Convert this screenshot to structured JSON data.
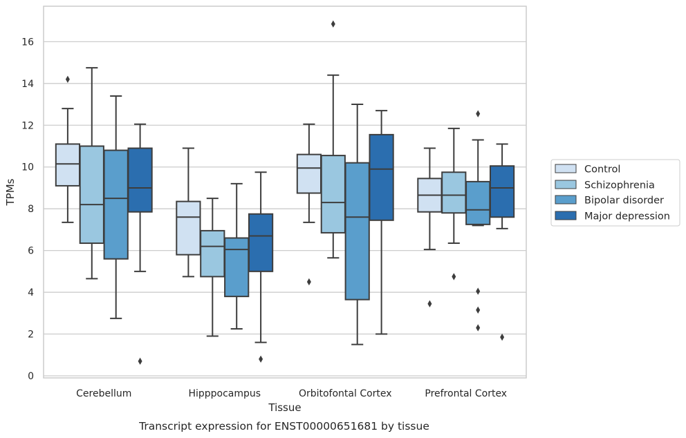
{
  "chart_data": {
    "type": "boxplot",
    "xlabel": "Tissue",
    "ylabel": "TPMs",
    "caption": "Transcript expression for ENST00000651681 by tissue",
    "ylim": [
      -0.1,
      17.7
    ],
    "yticks": [
      0,
      2,
      4,
      6,
      8,
      10,
      12,
      14,
      16
    ],
    "grid": "horizontal",
    "legend_position": "right",
    "categories": [
      "Cerebellum",
      "Hipppocampus",
      "Orbitofontal Cortex",
      "Prefrontal Cortex"
    ],
    "series": [
      {
        "name": "Control",
        "color": "#d0e1f2",
        "boxes": [
          {
            "whislo": 7.35,
            "q1": 9.1,
            "med": 10.15,
            "q3": 11.1,
            "whishi": 12.8,
            "fliers": [
              14.2
            ]
          },
          {
            "whislo": 4.75,
            "q1": 5.8,
            "med": 7.6,
            "q3": 8.35,
            "whishi": 10.9,
            "fliers": []
          },
          {
            "whislo": 7.35,
            "q1": 8.75,
            "med": 9.95,
            "q3": 10.6,
            "whishi": 12.05,
            "fliers": [
              4.5
            ]
          },
          {
            "whislo": 6.05,
            "q1": 7.85,
            "med": 8.65,
            "q3": 9.45,
            "whishi": 10.9,
            "fliers": [
              3.45
            ]
          }
        ]
      },
      {
        "name": "Schizophrenia",
        "color": "#9ac7e0",
        "boxes": [
          {
            "whislo": 4.65,
            "q1": 6.35,
            "med": 8.2,
            "q3": 11.0,
            "whishi": 14.75,
            "fliers": []
          },
          {
            "whislo": 1.9,
            "q1": 4.75,
            "med": 6.2,
            "q3": 6.95,
            "whishi": 8.5,
            "fliers": []
          },
          {
            "whislo": 5.65,
            "q1": 6.85,
            "med": 8.3,
            "q3": 10.55,
            "whishi": 14.4,
            "fliers": [
              16.85
            ]
          },
          {
            "whislo": 6.35,
            "q1": 7.8,
            "med": 8.65,
            "q3": 9.75,
            "whishi": 11.85,
            "fliers": [
              4.75
            ]
          }
        ]
      },
      {
        "name": "Bipolar disorder",
        "color": "#5a9ecc",
        "boxes": [
          {
            "whislo": 2.75,
            "q1": 5.6,
            "med": 8.5,
            "q3": 10.8,
            "whishi": 13.4,
            "fliers": []
          },
          {
            "whislo": 2.25,
            "q1": 3.8,
            "med": 6.05,
            "q3": 6.6,
            "whishi": 9.2,
            "fliers": []
          },
          {
            "whislo": 1.5,
            "q1": 3.65,
            "med": 7.6,
            "q3": 10.2,
            "whishi": 13.0,
            "fliers": []
          },
          {
            "whislo": 7.2,
            "q1": 7.25,
            "med": 7.95,
            "q3": 9.3,
            "whishi": 11.3,
            "fliers": [
              4.05,
              3.15,
              2.3,
              12.55
            ]
          }
        ]
      },
      {
        "name": "Major depression",
        "color": "#2b6eaf",
        "boxes": [
          {
            "whislo": 5.0,
            "q1": 7.85,
            "med": 9.0,
            "q3": 10.9,
            "whishi": 12.05,
            "fliers": [
              0.7
            ]
          },
          {
            "whislo": 1.6,
            "q1": 5.0,
            "med": 6.7,
            "q3": 7.75,
            "whishi": 9.75,
            "fliers": [
              0.8
            ]
          },
          {
            "whislo": 2.0,
            "q1": 7.45,
            "med": 9.9,
            "q3": 11.55,
            "whishi": 12.7,
            "fliers": []
          },
          {
            "whislo": 7.05,
            "q1": 7.6,
            "med": 9.0,
            "q3": 10.05,
            "whishi": 11.1,
            "fliers": [
              1.85
            ]
          }
        ]
      }
    ]
  }
}
